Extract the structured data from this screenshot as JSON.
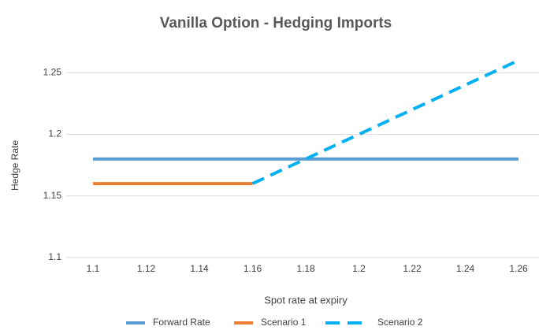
{
  "chart_data": {
    "type": "line",
    "title": "Vanilla Option - Hedging Imports",
    "xlabel": "Spot rate at expiry",
    "ylabel": "Hedge Rate",
    "xlim": [
      1.1,
      1.26
    ],
    "xticks": [
      1.1,
      1.12,
      1.14,
      1.16,
      1.18,
      1.2,
      1.22,
      1.24,
      1.26
    ],
    "ylim": [
      1.1,
      1.27
    ],
    "yticks": [
      1.1,
      1.15,
      1.2,
      1.25
    ],
    "grid": true,
    "legend": "bottom",
    "series": [
      {
        "name": "Forward Rate",
        "color": "#5b9bd5",
        "dashed": false,
        "x": [
          1.1,
          1.26
        ],
        "values": [
          1.18,
          1.18
        ]
      },
      {
        "name": "Scenario 1",
        "color": "#ed7d31",
        "dashed": false,
        "x": [
          1.1,
          1.16
        ],
        "values": [
          1.16,
          1.16
        ]
      },
      {
        "name": "Scenario 2",
        "color": "#00b0f0",
        "dashed": true,
        "x": [
          1.16,
          1.26
        ],
        "values": [
          1.16,
          1.26
        ]
      }
    ]
  }
}
